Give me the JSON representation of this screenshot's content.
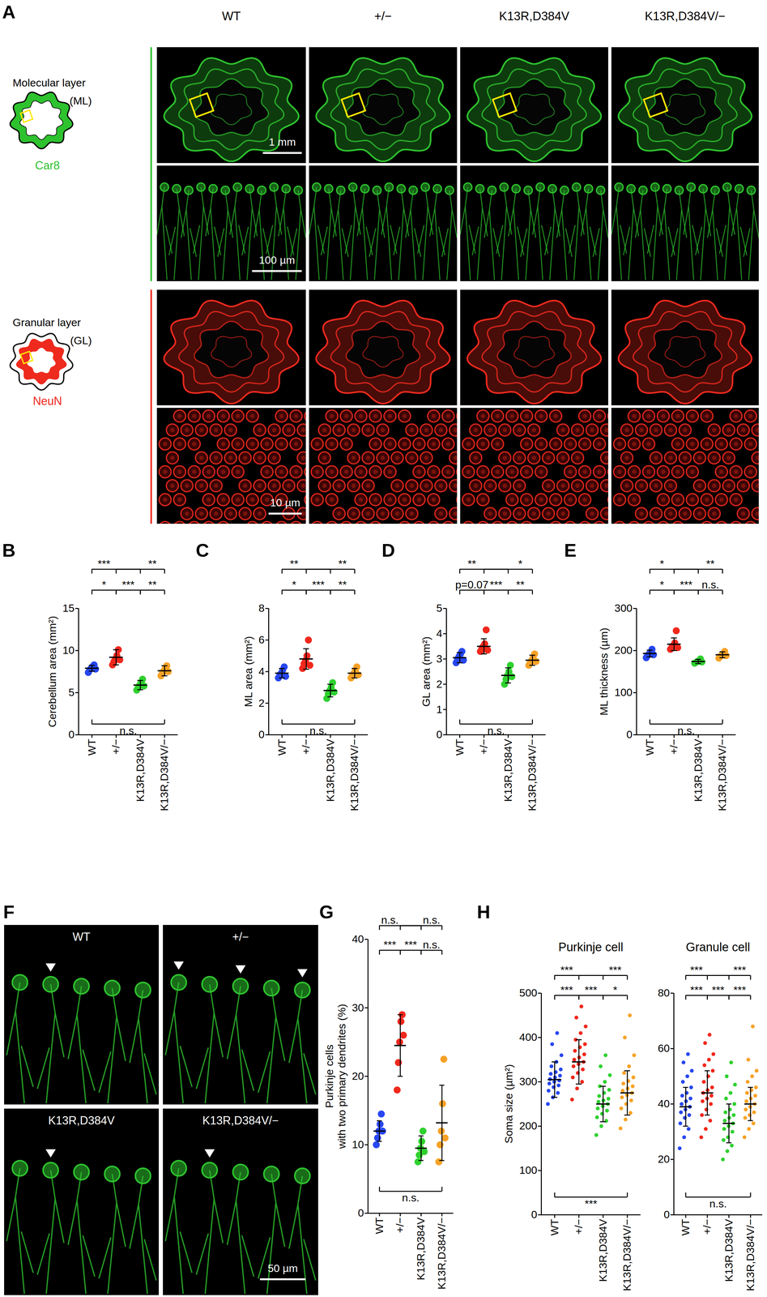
{
  "panel_A": {
    "panel_label": "A",
    "columns": [
      "WT",
      "+/−",
      "K13R,D384V",
      "K13R,D384V/−"
    ],
    "layers": [
      {
        "name": [
          "Molecular layer",
          "(ML)"
        ],
        "stain": "Car8",
        "color": "#2ec22e",
        "scale_bars": {
          "overview": "1 mm",
          "zoom": "100 µm"
        }
      },
      {
        "name": [
          "Granular layer",
          "(GL)"
        ],
        "stain": "NeuN",
        "color": "#ee2a1e",
        "scale_bars": {
          "zoom": "10 µm"
        }
      }
    ]
  },
  "panel_F": {
    "panel_label": "F",
    "images": [
      "WT",
      "+/−",
      "K13R,D384V",
      "K13R,D384V/−"
    ],
    "arrowheads": [
      1,
      3,
      1,
      1
    ],
    "scale_bar": "50 µm",
    "color": "#2ec22e"
  },
  "chart_data": [
    {
      "type": "strip",
      "panel_label": "B",
      "ylabel": "Cerebellum area (mm²)",
      "categories": [
        "WT",
        "+/−",
        "K13R,D384V",
        "K13R,D384V/−"
      ],
      "colors": [
        "#2747f0",
        "#f0281c",
        "#2fd12f",
        "#f7a226"
      ],
      "points": [
        [
          7.4,
          7.7,
          7.9,
          8.1,
          8.3,
          7.8
        ],
        [
          8.3,
          8.7,
          9.0,
          9.4,
          10.1,
          8.9
        ],
        [
          5.3,
          5.6,
          5.9,
          6.2,
          6.6,
          5.8
        ],
        [
          7.0,
          7.3,
          7.6,
          7.9,
          8.2,
          7.5
        ]
      ],
      "values": [
        7.9,
        9.2,
        5.9,
        7.6
      ],
      "error": [
        0.35,
        0.9,
        0.55,
        0.6
      ],
      "ylim": [
        0,
        15
      ],
      "yticks": [
        0,
        5,
        10,
        15
      ],
      "significance": [
        {
          "pair": [
            0,
            2
          ],
          "label": "***"
        },
        {
          "pair": [
            1,
            3
          ],
          "label": "**"
        },
        {
          "pair": [
            0,
            1
          ],
          "label": "*"
        },
        {
          "pair": [
            1,
            2
          ],
          "label": "***"
        },
        {
          "pair": [
            2,
            3
          ],
          "label": "**"
        },
        {
          "pair": [
            0,
            3
          ],
          "label": "n.s."
        }
      ]
    },
    {
      "type": "strip",
      "panel_label": "C",
      "ylabel": "ML area (mm²)",
      "categories": [
        "WT",
        "+/−",
        "K13R,D384V",
        "K13R,D384V/−"
      ],
      "colors": [
        "#2747f0",
        "#f0281c",
        "#2fd12f",
        "#f7a226"
      ],
      "points": [
        [
          3.6,
          3.8,
          3.9,
          4.1,
          4.3,
          3.7
        ],
        [
          4.2,
          4.5,
          4.7,
          5.0,
          6.0,
          4.4
        ],
        [
          2.3,
          2.6,
          2.8,
          3.0,
          3.3,
          2.7
        ],
        [
          3.6,
          3.8,
          3.9,
          4.1,
          4.3,
          3.8
        ]
      ],
      "values": [
        3.9,
        4.8,
        2.8,
        3.9
      ],
      "error": [
        0.3,
        0.65,
        0.4,
        0.3
      ],
      "ylim": [
        0,
        8
      ],
      "yticks": [
        0,
        2,
        4,
        6,
        8
      ],
      "significance": [
        {
          "pair": [
            0,
            2
          ],
          "label": "**"
        },
        {
          "pair": [
            1,
            3
          ],
          "label": "**"
        },
        {
          "pair": [
            0,
            1
          ],
          "label": "*"
        },
        {
          "pair": [
            1,
            2
          ],
          "label": "***"
        },
        {
          "pair": [
            2,
            3
          ],
          "label": "**"
        },
        {
          "pair": [
            0,
            3
          ],
          "label": "n.s."
        }
      ]
    },
    {
      "type": "strip",
      "panel_label": "D",
      "ylabel": "GL area (mm²)",
      "categories": [
        "WT",
        "+/−",
        "K13R,D384V",
        "K13R,D384V/−"
      ],
      "colors": [
        "#2747f0",
        "#f0281c",
        "#2fd12f",
        "#f7a226"
      ],
      "points": [
        [
          2.85,
          3.0,
          3.1,
          3.2,
          3.3,
          2.95
        ],
        [
          3.3,
          3.4,
          3.5,
          3.6,
          4.15,
          3.35
        ],
        [
          2.0,
          2.2,
          2.35,
          2.5,
          2.75,
          2.3
        ],
        [
          2.75,
          2.85,
          2.95,
          3.05,
          3.2,
          2.9
        ]
      ],
      "values": [
        3.05,
        3.5,
        2.35,
        2.95
      ],
      "error": [
        0.2,
        0.3,
        0.3,
        0.2
      ],
      "ylim": [
        0,
        5
      ],
      "yticks": [
        0,
        1,
        2,
        3,
        4,
        5
      ],
      "significance": [
        {
          "pair": [
            0,
            2
          ],
          "label": "**"
        },
        {
          "pair": [
            1,
            3
          ],
          "label": "*"
        },
        {
          "pair": [
            0,
            1
          ],
          "label": "p=0.07"
        },
        {
          "pair": [
            1,
            2
          ],
          "label": "***"
        },
        {
          "pair": [
            2,
            3
          ],
          "label": "**"
        },
        {
          "pair": [
            0,
            3
          ],
          "label": "n.s."
        }
      ]
    },
    {
      "type": "strip",
      "panel_label": "E",
      "ylabel": "ML thickness (µm)",
      "categories": [
        "WT",
        "+/−",
        "K13R,D384V",
        "K13R,D384V/−"
      ],
      "colors": [
        "#2747f0",
        "#f0281c",
        "#2fd12f",
        "#f7a226"
      ],
      "points": [
        [
          183,
          188,
          192,
          196,
          203,
          190
        ],
        [
          203,
          208,
          212,
          218,
          247,
          207
        ],
        [
          170,
          172,
          174,
          176,
          180,
          173
        ],
        [
          182,
          186,
          189,
          192,
          198,
          188
        ]
      ],
      "values": [
        193,
        215,
        174,
        190
      ],
      "error": [
        8,
        15,
        5,
        7
      ],
      "ylim": [
        0,
        300
      ],
      "yticks": [
        0,
        100,
        200,
        300
      ],
      "significance": [
        {
          "pair": [
            0,
            2
          ],
          "label": "*"
        },
        {
          "pair": [
            1,
            3
          ],
          "label": "**"
        },
        {
          "pair": [
            0,
            1
          ],
          "label": "*"
        },
        {
          "pair": [
            1,
            2
          ],
          "label": "***"
        },
        {
          "pair": [
            2,
            3
          ],
          "label": "n.s."
        },
        {
          "pair": [
            0,
            3
          ],
          "label": "n.s."
        }
      ]
    },
    {
      "type": "strip",
      "panel_label": "G",
      "ylabel": [
        "Purkinje cells",
        "with two primary dendrites (%)"
      ],
      "categories": [
        "WT",
        "+/−",
        "K13R,D384V",
        "K13R,D384V/−"
      ],
      "colors": [
        "#2747f0",
        "#f0281c",
        "#2fd12f",
        "#f7a226"
      ],
      "points": [
        [
          10,
          11,
          12,
          13,
          14.5,
          12
        ],
        [
          18,
          22,
          25,
          28,
          29,
          26
        ],
        [
          7.5,
          8.5,
          9.5,
          10.5,
          12,
          9
        ],
        [
          7.5,
          10,
          12,
          16,
          22.5,
          11
        ]
      ],
      "values": [
        12,
        24.5,
        9.5,
        13.2
      ],
      "error": [
        1.5,
        4.5,
        1.8,
        5.5
      ],
      "ylim": [
        0,
        40
      ],
      "yticks": [
        0,
        10,
        20,
        30,
        40
      ],
      "significance": [
        {
          "pair": [
            0,
            2
          ],
          "label": "n.s."
        },
        {
          "pair": [
            1,
            3
          ],
          "label": "n.s."
        },
        {
          "pair": [
            0,
            1
          ],
          "label": "***"
        },
        {
          "pair": [
            1,
            2
          ],
          "label": "***"
        },
        {
          "pair": [
            2,
            3
          ],
          "label": "n.s."
        },
        {
          "pair": [
            0,
            3
          ],
          "label": "n.s."
        }
      ]
    },
    {
      "type": "strip",
      "panel_label": "H",
      "title": "Purkinje cell",
      "ylabel": "Soma size (µm²)",
      "categories": [
        "WT",
        "+/−",
        "K13R,D384V",
        "K13R,D384V/−"
      ],
      "colors": [
        "#2747f0",
        "#f0281c",
        "#2fd12f",
        "#f7a226"
      ],
      "points": [
        [
          250,
          265,
          275,
          280,
          288,
          292,
          296,
          300,
          303,
          306,
          310,
          314,
          318,
          322,
          328,
          335,
          345,
          360,
          385,
          410
        ],
        [
          260,
          285,
          300,
          310,
          320,
          328,
          335,
          340,
          345,
          350,
          355,
          362,
          370,
          378,
          385,
          395,
          410,
          425,
          445,
          470
        ],
        [
          180,
          200,
          212,
          220,
          228,
          235,
          240,
          245,
          250,
          255,
          258,
          262,
          268,
          275,
          282,
          290,
          300,
          315,
          335,
          360
        ],
        [
          195,
          215,
          230,
          240,
          250,
          258,
          265,
          270,
          275,
          280,
          285,
          290,
          296,
          302,
          310,
          320,
          335,
          360,
          400,
          450
        ]
      ],
      "values": [
        305,
        345,
        250,
        275
      ],
      "error": [
        40,
        50,
        40,
        50
      ],
      "ylim": [
        0,
        500
      ],
      "yticks": [
        0,
        100,
        200,
        300,
        400,
        500
      ],
      "significance": [
        {
          "pair": [
            0,
            2
          ],
          "label": "***"
        },
        {
          "pair": [
            1,
            3
          ],
          "label": "***"
        },
        {
          "pair": [
            0,
            1
          ],
          "label": "***"
        },
        {
          "pair": [
            1,
            2
          ],
          "label": "***"
        },
        {
          "pair": [
            2,
            3
          ],
          "label": "*"
        },
        {
          "pair": [
            0,
            3
          ],
          "label": "***"
        }
      ]
    },
    {
      "type": "strip",
      "title": "Granule cell",
      "categories": [
        "WT",
        "+/−",
        "K13R,D384V",
        "K13R,D384V/−"
      ],
      "colors": [
        "#2747f0",
        "#f0281c",
        "#2fd12f",
        "#f7a226"
      ],
      "points": [
        [
          24,
          28,
          31,
          33,
          35,
          36,
          37,
          38,
          39,
          40,
          41,
          42,
          43,
          44,
          46,
          48,
          50,
          52,
          55,
          58
        ],
        [
          28,
          31,
          34,
          36,
          38,
          40,
          41,
          42,
          43,
          44,
          45,
          46,
          48,
          50,
          52,
          54,
          56,
          58,
          62,
          65
        ],
        [
          20,
          23,
          25,
          27,
          28,
          30,
          31,
          32,
          33,
          34,
          35,
          36,
          37,
          38,
          40,
          42,
          44,
          47,
          50,
          55
        ],
        [
          28,
          31,
          33,
          35,
          36,
          37,
          38,
          39,
          40,
          41,
          42,
          43,
          44,
          45,
          46,
          48,
          50,
          52,
          56,
          68
        ]
      ],
      "values": [
        39,
        44,
        33,
        40
      ],
      "error": [
        7,
        8,
        7,
        6
      ],
      "ylim": [
        0,
        80
      ],
      "yticks": [
        0,
        20,
        40,
        60,
        80
      ],
      "significance": [
        {
          "pair": [
            0,
            2
          ],
          "label": "***"
        },
        {
          "pair": [
            1,
            3
          ],
          "label": "***"
        },
        {
          "pair": [
            0,
            1
          ],
          "label": "***"
        },
        {
          "pair": [
            1,
            2
          ],
          "label": "***"
        },
        {
          "pair": [
            2,
            3
          ],
          "label": "***"
        },
        {
          "pair": [
            0,
            3
          ],
          "label": "n.s."
        }
      ]
    }
  ]
}
